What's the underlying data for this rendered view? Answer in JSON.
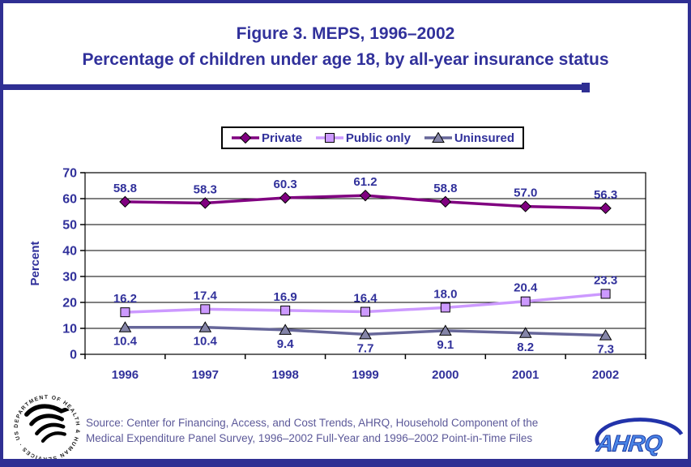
{
  "title": {
    "line1": "Figure 3. MEPS, 1996–2002",
    "line2": "Percentage of children under age 18, by all-year insurance status"
  },
  "colors": {
    "navy": "#31319b",
    "frame": "#2f2f93",
    "source_text": "#5c5999",
    "grid": "#000000",
    "ahrq_blue": "#4a86e8",
    "ahrq_dark": "#2233aa"
  },
  "chart_data": {
    "type": "line",
    "title": "Figure 3. MEPS, 1996–2002",
    "subtitle": "Percentage of children under age 18, by all-year insurance status",
    "categories": [
      "1996",
      "1997",
      "1998",
      "1999",
      "2000",
      "2001",
      "2002"
    ],
    "xlabel": "",
    "ylabel": "Percent",
    "ylim": [
      0,
      70
    ],
    "ytick_interval": 10,
    "grid": true,
    "legend_position": "top-center",
    "series": [
      {
        "name": "Private",
        "values": [
          58.8,
          58.3,
          60.3,
          61.2,
          58.8,
          57.0,
          56.3
        ],
        "color": "#800080",
        "marker_fill": "#800080",
        "marker": "diamond",
        "label_position": "above"
      },
      {
        "name": "Public only",
        "values": [
          16.2,
          17.4,
          16.9,
          16.4,
          18.0,
          20.4,
          23.3
        ],
        "color": "#cc99ff",
        "marker_fill": "#cc99ff",
        "marker": "square",
        "label_position": "above"
      },
      {
        "name": "Uninsured",
        "values": [
          10.4,
          10.4,
          9.4,
          7.7,
          9.1,
          8.2,
          7.3
        ],
        "color": "#666699",
        "marker_fill": "#8585a8",
        "marker": "triangle",
        "label_position": "below"
      }
    ]
  },
  "footer": {
    "source_line1": "Source: Center for Financing, Access, and Cost Trends, AHRQ, Household Component of the",
    "source_line2": "Medical Expenditure Panel Survey, 1996–2002 Full-Year and 1996–2002 Point-in-Time Files",
    "hhs_seal_text": "DEPARTMENT OF HEALTH & HUMAN SERVICES · USA ·",
    "ahrq_text": "AHRQ"
  }
}
